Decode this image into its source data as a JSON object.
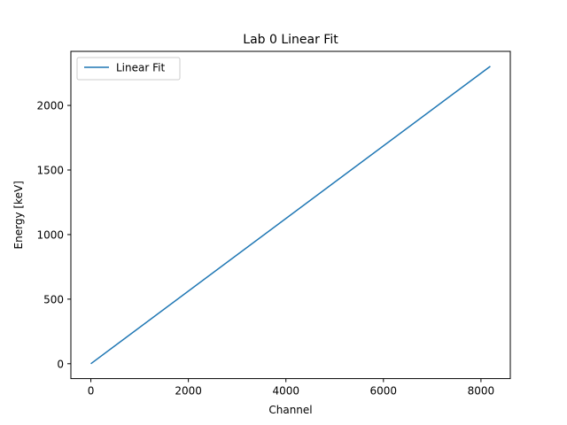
{
  "chart_data": {
    "type": "line",
    "title": "Lab 0 Linear Fit",
    "xlabel": "Channel",
    "ylabel": "Energy [keV]",
    "xlim": [
      -409.6,
      8601.6
    ],
    "ylim": [
      -115.2,
      2418.6
    ],
    "xticks": [
      0,
      2000,
      4000,
      6000,
      8000
    ],
    "yticks": [
      0,
      500,
      1000,
      1500,
      2000
    ],
    "grid": false,
    "legend_position": "top-left",
    "series": [
      {
        "name": "Linear Fit",
        "color": "#1f77b4",
        "x": [
          0,
          8192
        ],
        "y": [
          0,
          2303
        ]
      }
    ]
  }
}
